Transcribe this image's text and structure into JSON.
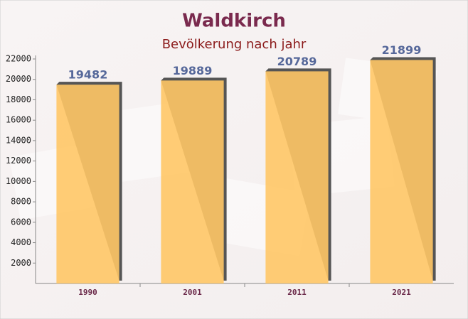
{
  "chart_data": {
    "type": "bar",
    "title": "Waldkirch",
    "subtitle": "Bevölkerung nach jahr",
    "categories": [
      "1990",
      "2001",
      "2011",
      "2021"
    ],
    "values": [
      19482,
      19889,
      20789,
      21899
    ],
    "color": "#ffc766",
    "ylim": [
      0,
      22000
    ],
    "yticks": [
      2000,
      4000,
      6000,
      8000,
      10000,
      12000,
      14000,
      16000,
      18000,
      20000,
      22000
    ],
    "grid": false
  }
}
